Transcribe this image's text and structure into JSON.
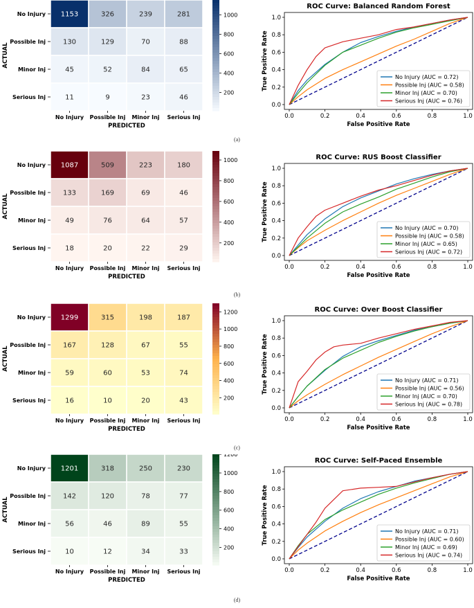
{
  "labels": [
    "No Injury",
    "Possible Inj",
    "Minor Inj",
    "Serious Inj"
  ],
  "cm_xlabel": "PREDICTED",
  "cm_ylabel": "ACTUAL",
  "roc_xlabel": "False Positive Rate",
  "roc_ylabel": "True Positive Rate",
  "roc_ticks": [
    "0.0",
    "0.2",
    "0.4",
    "0.6",
    "0.8",
    "1.0"
  ],
  "series_colors": [
    "#1f77b4",
    "#ff7f0e",
    "#2ca02c",
    "#d62728"
  ],
  "chart_data": [
    {
      "type": "heatmap",
      "caption": "(a)",
      "colormap": "Blues",
      "colors": {
        "low": "#f7fbff",
        "high": "#08306b"
      },
      "vmin": 11,
      "vmax": 1153,
      "colorbar_ticks": [
        "1000",
        "800",
        "600",
        "400",
        "200"
      ],
      "colorbar_values": [
        1000,
        800,
        600,
        400,
        200
      ],
      "matrix": [
        [
          1153,
          326,
          239,
          281
        ],
        [
          130,
          129,
          70,
          88
        ],
        [
          45,
          52,
          84,
          65
        ],
        [
          11,
          9,
          23,
          46
        ]
      ]
    },
    {
      "type": "line",
      "title": "ROC Curve: Balanced Random Forest",
      "xlim": [
        0,
        1
      ],
      "ylim": [
        0,
        1
      ],
      "series": [
        {
          "name": "No Injury (AUC = 0.72)",
          "x": [
            0,
            0.05,
            0.1,
            0.2,
            0.3,
            0.4,
            0.5,
            0.6,
            0.7,
            0.8,
            0.9,
            1.0
          ],
          "y": [
            0,
            0.16,
            0.28,
            0.46,
            0.6,
            0.71,
            0.78,
            0.84,
            0.89,
            0.93,
            0.97,
            1.0
          ]
        },
        {
          "name": "Possible Inj (AUC = 0.58)",
          "x": [
            0,
            0.05,
            0.1,
            0.2,
            0.3,
            0.4,
            0.5,
            0.6,
            0.7,
            0.8,
            0.9,
            1.0
          ],
          "y": [
            0,
            0.09,
            0.17,
            0.3,
            0.4,
            0.49,
            0.58,
            0.67,
            0.75,
            0.84,
            0.93,
            1.0
          ]
        },
        {
          "name": "Minor Inj (AUC = 0.70)",
          "x": [
            0,
            0.05,
            0.1,
            0.2,
            0.3,
            0.4,
            0.5,
            0.6,
            0.7,
            0.8,
            0.9,
            1.0
          ],
          "y": [
            0,
            0.13,
            0.25,
            0.45,
            0.6,
            0.68,
            0.76,
            0.83,
            0.88,
            0.92,
            0.96,
            1.0
          ]
        },
        {
          "name": "Serious Inj (AUC = 0.76)",
          "x": [
            0,
            0.05,
            0.1,
            0.15,
            0.2,
            0.3,
            0.4,
            0.5,
            0.6,
            0.7,
            0.8,
            0.9,
            1.0
          ],
          "y": [
            0,
            0.22,
            0.4,
            0.55,
            0.65,
            0.72,
            0.76,
            0.8,
            0.86,
            0.89,
            0.93,
            0.97,
            1.0
          ]
        }
      ]
    },
    {
      "type": "heatmap",
      "caption": "(b)",
      "colormap": "Reds",
      "colors": {
        "low": "#fff5f0",
        "high": "#67000d"
      },
      "vmin": 18,
      "vmax": 1087,
      "colorbar_ticks": [
        "1000",
        "800",
        "600",
        "400",
        "200"
      ],
      "colorbar_values": [
        1000,
        800,
        600,
        400,
        200
      ],
      "matrix": [
        [
          1087,
          509,
          223,
          180
        ],
        [
          133,
          169,
          69,
          46
        ],
        [
          49,
          76,
          64,
          57
        ],
        [
          18,
          20,
          22,
          29
        ]
      ]
    },
    {
      "type": "line",
      "title": "ROC Curve: RUS Boost Classifier",
      "xlim": [
        0,
        1
      ],
      "ylim": [
        0,
        1
      ],
      "series": [
        {
          "name": "No Injury (AUC = 0.70)",
          "x": [
            0,
            0.05,
            0.1,
            0.2,
            0.3,
            0.4,
            0.5,
            0.6,
            0.7,
            0.8,
            0.9,
            1.0
          ],
          "y": [
            0,
            0.12,
            0.24,
            0.42,
            0.56,
            0.66,
            0.74,
            0.82,
            0.88,
            0.93,
            0.97,
            1.0
          ]
        },
        {
          "name": "Possible Inj (AUC = 0.58)",
          "x": [
            0,
            0.05,
            0.1,
            0.2,
            0.3,
            0.4,
            0.5,
            0.6,
            0.7,
            0.8,
            0.9,
            1.0
          ],
          "y": [
            0,
            0.09,
            0.17,
            0.29,
            0.4,
            0.5,
            0.6,
            0.69,
            0.77,
            0.85,
            0.93,
            1.0
          ]
        },
        {
          "name": "Minor Inj (AUC = 0.65)",
          "x": [
            0,
            0.05,
            0.1,
            0.2,
            0.3,
            0.4,
            0.5,
            0.6,
            0.7,
            0.8,
            0.9,
            1.0
          ],
          "y": [
            0,
            0.1,
            0.2,
            0.37,
            0.5,
            0.59,
            0.67,
            0.76,
            0.83,
            0.9,
            0.96,
            1.0
          ]
        },
        {
          "name": "Serious Inj (AUC = 0.72)",
          "x": [
            0,
            0.05,
            0.1,
            0.15,
            0.2,
            0.3,
            0.4,
            0.5,
            0.6,
            0.7,
            0.8,
            0.9,
            1.0
          ],
          "y": [
            0,
            0.2,
            0.33,
            0.45,
            0.52,
            0.6,
            0.68,
            0.75,
            0.8,
            0.86,
            0.92,
            0.97,
            1.0
          ]
        }
      ]
    },
    {
      "type": "heatmap",
      "caption": "(c)",
      "colormap": "YlOrRd",
      "colors": {
        "low": "#ffffcc",
        "mid": "#feb24c",
        "high": "#800026"
      },
      "vmin": 10,
      "vmax": 1299,
      "colorbar_ticks": [
        "1200",
        "1000",
        "800",
        "600",
        "400",
        "200"
      ],
      "colorbar_values": [
        1200,
        1000,
        800,
        600,
        400,
        200
      ],
      "matrix": [
        [
          1299,
          315,
          198,
          187
        ],
        [
          167,
          128,
          67,
          55
        ],
        [
          59,
          60,
          53,
          74
        ],
        [
          16,
          10,
          20,
          43
        ]
      ]
    },
    {
      "type": "line",
      "title": "ROC Curve: Over Boost Classifier",
      "xlim": [
        0,
        1
      ],
      "ylim": [
        0,
        1
      ],
      "series": [
        {
          "name": "No Injury (AUC = 0.71)",
          "x": [
            0,
            0.05,
            0.1,
            0.2,
            0.3,
            0.4,
            0.5,
            0.6,
            0.7,
            0.8,
            0.9,
            1.0
          ],
          "y": [
            0,
            0.13,
            0.25,
            0.43,
            0.59,
            0.7,
            0.77,
            0.83,
            0.89,
            0.93,
            0.97,
            1.0
          ]
        },
        {
          "name": "Possible Inj (AUC = 0.56)",
          "x": [
            0,
            0.05,
            0.1,
            0.2,
            0.3,
            0.4,
            0.5,
            0.6,
            0.7,
            0.8,
            0.9,
            1.0
          ],
          "y": [
            0,
            0.08,
            0.15,
            0.27,
            0.38,
            0.48,
            0.58,
            0.67,
            0.76,
            0.85,
            0.93,
            1.0
          ]
        },
        {
          "name": "Minor Inj (AUC = 0.70)",
          "x": [
            0,
            0.05,
            0.1,
            0.2,
            0.3,
            0.4,
            0.5,
            0.6,
            0.7,
            0.8,
            0.9,
            1.0
          ],
          "y": [
            0,
            0.13,
            0.25,
            0.44,
            0.57,
            0.66,
            0.75,
            0.82,
            0.88,
            0.93,
            0.97,
            1.0
          ]
        },
        {
          "name": "Serious Inj (AUC = 0.78)",
          "x": [
            0,
            0.05,
            0.1,
            0.15,
            0.2,
            0.25,
            0.3,
            0.4,
            0.5,
            0.6,
            0.7,
            0.8,
            0.9,
            1.0
          ],
          "y": [
            0,
            0.3,
            0.42,
            0.55,
            0.64,
            0.7,
            0.72,
            0.74,
            0.8,
            0.85,
            0.9,
            0.94,
            0.98,
            1.0
          ]
        }
      ]
    },
    {
      "type": "heatmap",
      "caption": "(d)",
      "colormap": "Greens",
      "colors": {
        "low": "#f7fcf5",
        "high": "#00441b"
      },
      "vmin": 10,
      "vmax": 1201,
      "colorbar_ticks": [
        "1200",
        "1000",
        "800",
        "600",
        "400",
        "200"
      ],
      "colorbar_values": [
        1200,
        1000,
        800,
        600,
        400,
        200
      ],
      "matrix": [
        [
          1201,
          318,
          250,
          230
        ],
        [
          142,
          120,
          78,
          77
        ],
        [
          56,
          46,
          89,
          55
        ],
        [
          10,
          12,
          34,
          33
        ]
      ]
    },
    {
      "type": "line",
      "title": "ROC Curve: Self-Paced Ensemble",
      "xlim": [
        0,
        1
      ],
      "ylim": [
        0,
        1
      ],
      "series": [
        {
          "name": "No Injury (AUC = 0.71)",
          "x": [
            0,
            0.05,
            0.1,
            0.2,
            0.3,
            0.4,
            0.5,
            0.6,
            0.7,
            0.8,
            0.9,
            1.0
          ],
          "y": [
            0,
            0.13,
            0.25,
            0.43,
            0.58,
            0.69,
            0.77,
            0.83,
            0.89,
            0.93,
            0.97,
            1.0
          ]
        },
        {
          "name": "Possible Inj (AUC = 0.60)",
          "x": [
            0,
            0.05,
            0.1,
            0.2,
            0.3,
            0.4,
            0.5,
            0.6,
            0.7,
            0.8,
            0.9,
            1.0
          ],
          "y": [
            0,
            0.1,
            0.18,
            0.32,
            0.43,
            0.53,
            0.62,
            0.7,
            0.78,
            0.86,
            0.94,
            1.0
          ]
        },
        {
          "name": "Minor Inj (AUC = 0.69)",
          "x": [
            0,
            0.05,
            0.1,
            0.2,
            0.3,
            0.4,
            0.5,
            0.6,
            0.7,
            0.8,
            0.9,
            1.0
          ],
          "y": [
            0,
            0.15,
            0.28,
            0.45,
            0.56,
            0.65,
            0.74,
            0.81,
            0.87,
            0.92,
            0.97,
            1.0
          ]
        },
        {
          "name": "Serious Inj (AUC = 0.74)",
          "x": [
            0,
            0.05,
            0.1,
            0.15,
            0.2,
            0.3,
            0.4,
            0.5,
            0.6,
            0.7,
            0.8,
            0.9,
            1.0
          ],
          "y": [
            0,
            0.14,
            0.28,
            0.42,
            0.58,
            0.78,
            0.81,
            0.82,
            0.83,
            0.88,
            0.93,
            0.97,
            1.0
          ]
        }
      ]
    }
  ]
}
